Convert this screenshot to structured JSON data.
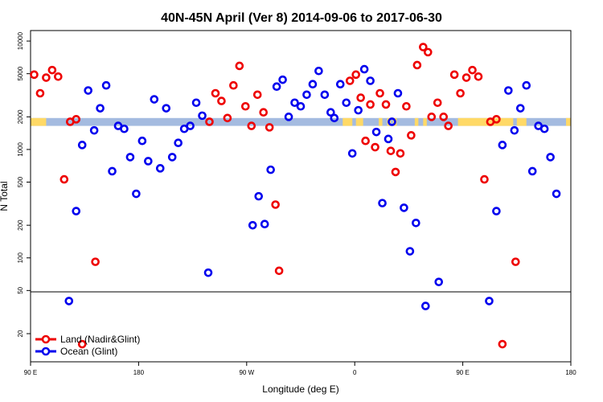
{
  "chart_data": {
    "type": "scatter",
    "title": "40N-45N April (Ver 8)   2014-09-06 to 2017-06-30",
    "xlabel": "Longitude (deg E)",
    "ylabel": "N Total",
    "x_ticks": [
      {
        "value": 90,
        "label": "90 E"
      },
      {
        "value": 180,
        "label": "180"
      },
      {
        "value": 270,
        "label": "90 W"
      },
      {
        "value": 360,
        "label": "0"
      },
      {
        "value": 450,
        "label": "90 E"
      },
      {
        "value": 540,
        "label": "180"
      }
    ],
    "xlim": [
      90,
      540
    ],
    "y_scale": "log",
    "ylim": [
      11,
      12500
    ],
    "y_break_at": 50,
    "y_ticks": [
      {
        "value": 10000,
        "label": "10000"
      },
      {
        "value": 5000,
        "label": "5000"
      },
      {
        "value": 2000,
        "label": "2000"
      },
      {
        "value": 1000,
        "label": "1000"
      },
      {
        "value": 500,
        "label": "500"
      },
      {
        "value": 200,
        "label": "200"
      },
      {
        "value": 100,
        "label": "100"
      },
      {
        "value": 50,
        "label": "50"
      },
      {
        "value": 20,
        "label": "20"
      }
    ],
    "colors": {
      "land": "#ee0000",
      "ocean": "#0000ee",
      "land_mask": "#ffd966",
      "ocean_mask": "#a4bbe0"
    },
    "band": {
      "y_low": 1650,
      "y_high": 1950
    },
    "land_intervals": [
      [
        90,
        103
      ],
      [
        350,
        358
      ],
      [
        361,
        367
      ],
      [
        380,
        383
      ],
      [
        387,
        390
      ],
      [
        392,
        395
      ],
      [
        410,
        413
      ],
      [
        417,
        420
      ],
      [
        446,
        492
      ],
      [
        495,
        503
      ],
      [
        536,
        540
      ]
    ],
    "series": [
      {
        "name": "Land (Nadir&Glint)",
        "color": "#ee0000",
        "points": [
          {
            "x": 93,
            "y": 4900
          },
          {
            "x": 98,
            "y": 3300
          },
          {
            "x": 103,
            "y": 4600
          },
          {
            "x": 108,
            "y": 5400
          },
          {
            "x": 113,
            "y": 4700
          },
          {
            "x": 118,
            "y": 530
          },
          {
            "x": 123,
            "y": 1800
          },
          {
            "x": 128,
            "y": 1900
          },
          {
            "x": 133,
            "y": 16
          },
          {
            "x": 144,
            "y": 92
          },
          {
            "x": 239,
            "y": 1800
          },
          {
            "x": 244,
            "y": 3300
          },
          {
            "x": 249,
            "y": 2800
          },
          {
            "x": 254,
            "y": 1950
          },
          {
            "x": 259,
            "y": 3900
          },
          {
            "x": 264,
            "y": 5900
          },
          {
            "x": 269,
            "y": 2500
          },
          {
            "x": 274,
            "y": 1650
          },
          {
            "x": 279,
            "y": 3200
          },
          {
            "x": 284,
            "y": 2200
          },
          {
            "x": 289,
            "y": 1600
          },
          {
            "x": 294,
            "y": 310
          },
          {
            "x": 297,
            "y": 76
          },
          {
            "x": 356,
            "y": 4300
          },
          {
            "x": 361,
            "y": 4900
          },
          {
            "x": 365,
            "y": 3000
          },
          {
            "x": 369,
            "y": 1200
          },
          {
            "x": 373,
            "y": 2600
          },
          {
            "x": 377,
            "y": 1050
          },
          {
            "x": 381,
            "y": 3300
          },
          {
            "x": 386,
            "y": 2600
          },
          {
            "x": 390,
            "y": 970
          },
          {
            "x": 394,
            "y": 620
          },
          {
            "x": 398,
            "y": 920
          },
          {
            "x": 403,
            "y": 2500
          },
          {
            "x": 407,
            "y": 1350
          },
          {
            "x": 412,
            "y": 6000
          },
          {
            "x": 417,
            "y": 8800
          },
          {
            "x": 421,
            "y": 7900
          },
          {
            "x": 424,
            "y": 2000
          },
          {
            "x": 429,
            "y": 2700
          },
          {
            "x": 434,
            "y": 2000
          },
          {
            "x": 438,
            "y": 1650
          },
          {
            "x": 443,
            "y": 4900
          },
          {
            "x": 448,
            "y": 3300
          },
          {
            "x": 453,
            "y": 4600
          },
          {
            "x": 458,
            "y": 5400
          },
          {
            "x": 463,
            "y": 4700
          },
          {
            "x": 468,
            "y": 530
          },
          {
            "x": 473,
            "y": 1800
          },
          {
            "x": 478,
            "y": 1900
          },
          {
            "x": 483,
            "y": 16
          },
          {
            "x": 494,
            "y": 92
          }
        ]
      },
      {
        "name": "Ocean (Glint)",
        "color": "#0000ee",
        "points": [
          {
            "x": 122,
            "y": 40
          },
          {
            "x": 128,
            "y": 270
          },
          {
            "x": 133,
            "y": 1100
          },
          {
            "x": 138,
            "y": 3500
          },
          {
            "x": 143,
            "y": 1500
          },
          {
            "x": 148,
            "y": 2400
          },
          {
            "x": 153,
            "y": 3900
          },
          {
            "x": 158,
            "y": 630
          },
          {
            "x": 163,
            "y": 1650
          },
          {
            "x": 168,
            "y": 1550
          },
          {
            "x": 173,
            "y": 850
          },
          {
            "x": 178,
            "y": 390
          },
          {
            "x": 183,
            "y": 1200
          },
          {
            "x": 188,
            "y": 780
          },
          {
            "x": 193,
            "y": 2900
          },
          {
            "x": 198,
            "y": 670
          },
          {
            "x": 203,
            "y": 2400
          },
          {
            "x": 208,
            "y": 850
          },
          {
            "x": 213,
            "y": 1150
          },
          {
            "x": 218,
            "y": 1550
          },
          {
            "x": 223,
            "y": 1650
          },
          {
            "x": 228,
            "y": 2700
          },
          {
            "x": 233,
            "y": 2050
          },
          {
            "x": 238,
            "y": 73
          },
          {
            "x": 275,
            "y": 200
          },
          {
            "x": 280,
            "y": 370
          },
          {
            "x": 285,
            "y": 205
          },
          {
            "x": 290,
            "y": 650
          },
          {
            "x": 295,
            "y": 3800
          },
          {
            "x": 300,
            "y": 4400
          },
          {
            "x": 305,
            "y": 2000
          },
          {
            "x": 310,
            "y": 2700
          },
          {
            "x": 315,
            "y": 2500
          },
          {
            "x": 320,
            "y": 3200
          },
          {
            "x": 325,
            "y": 4000
          },
          {
            "x": 330,
            "y": 5300
          },
          {
            "x": 335,
            "y": 3200
          },
          {
            "x": 340,
            "y": 2200
          },
          {
            "x": 343,
            "y": 1950
          },
          {
            "x": 348,
            "y": 4000
          },
          {
            "x": 353,
            "y": 2700
          },
          {
            "x": 358,
            "y": 920
          },
          {
            "x": 363,
            "y": 2300
          },
          {
            "x": 368,
            "y": 5500
          },
          {
            "x": 373,
            "y": 4300
          },
          {
            "x": 378,
            "y": 1450
          },
          {
            "x": 383,
            "y": 320
          },
          {
            "x": 388,
            "y": 1250
          },
          {
            "x": 391,
            "y": 1800
          },
          {
            "x": 396,
            "y": 3300
          },
          {
            "x": 401,
            "y": 290
          },
          {
            "x": 406,
            "y": 115
          },
          {
            "x": 411,
            "y": 210
          },
          {
            "x": 419,
            "y": 36
          },
          {
            "x": 430,
            "y": 60
          },
          {
            "x": 472,
            "y": 40
          },
          {
            "x": 478,
            "y": 270
          },
          {
            "x": 483,
            "y": 1100
          },
          {
            "x": 488,
            "y": 3500
          },
          {
            "x": 493,
            "y": 1500
          },
          {
            "x": 498,
            "y": 2400
          },
          {
            "x": 503,
            "y": 3900
          },
          {
            "x": 508,
            "y": 630
          },
          {
            "x": 513,
            "y": 1650
          },
          {
            "x": 518,
            "y": 1550
          },
          {
            "x": 523,
            "y": 850
          },
          {
            "x": 528,
            "y": 390
          }
        ]
      }
    ],
    "legend": {
      "position": "bottom-left",
      "entries": [
        "Land (Nadir&Glint)",
        "Ocean (Glint)"
      ]
    },
    "grid": false
  }
}
